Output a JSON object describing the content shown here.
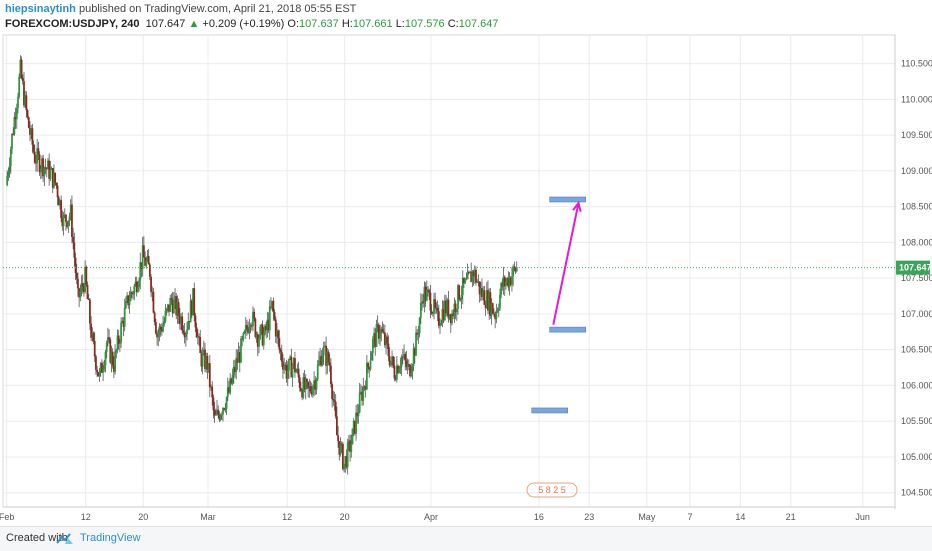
{
  "header": {
    "author": "hiepsinaytinh",
    "published_text": "published on TradingView.com, April 21, 2018 05:55 EST",
    "symbol": "FOREXCOM:USDJPY, 240",
    "last": "107.647",
    "up_arrow": "▲",
    "change": "+0.209 (+0.19%)",
    "o_label": "O:",
    "o_value": "107.637",
    "h_label": "H:",
    "h_value": "107.661",
    "l_label": "L:",
    "l_value": "107.576",
    "c_label": "C:",
    "c_value": "107.647"
  },
  "footer": {
    "created_with": "Created with",
    "brand": "TradingView"
  },
  "colors": {
    "up": "#2a9d3a",
    "down": "#8b2b1e",
    "wick": "#555555",
    "price_line": "#3aa55a",
    "price_label_bg": "#3aa55a",
    "arrow": "#e619d6",
    "level_box": "#7aa6e0",
    "grid": "#e9ecef"
  },
  "chart_data": {
    "type": "candlestick",
    "symbol": "FOREXCOM:USDJPY",
    "interval": "240",
    "y_ticks": [
      "110.500",
      "110.000",
      "109.500",
      "109.000",
      "108.500",
      "108.000",
      "107.500",
      "107.000",
      "106.500",
      "106.000",
      "105.500",
      "105.000",
      "104.500"
    ],
    "y_tick_values": [
      110.5,
      110.0,
      109.5,
      109.0,
      108.5,
      108.0,
      107.5,
      107.0,
      106.5,
      106.0,
      105.5,
      105.0,
      104.5
    ],
    "ylim": [
      104.3,
      110.9
    ],
    "x_ticks": [
      "Feb",
      "12",
      "20",
      "Mar",
      "12",
      "20",
      "Apr",
      "16",
      "23",
      "May",
      "7",
      "14",
      "21",
      "Jun"
    ],
    "x_tick_days": [
      1,
      12,
      20,
      29,
      40,
      48,
      60,
      75,
      82,
      90,
      96,
      103,
      110,
      120
    ],
    "xlim": [
      0.5,
      124.5
    ],
    "last_price": 107.647,
    "last_price_label": "107.647",
    "daily_close_path": [
      [
        1,
        108.8
      ],
      [
        2,
        109.6
      ],
      [
        3,
        110.4
      ],
      [
        4,
        109.7
      ],
      [
        5,
        109.2
      ],
      [
        6,
        109.1
      ],
      [
        7,
        109.0
      ],
      [
        8,
        108.8
      ],
      [
        9,
        108.3
      ],
      [
        10,
        108.4
      ],
      [
        11,
        107.2
      ],
      [
        12,
        107.5
      ],
      [
        13,
        106.6
      ],
      [
        14,
        106.1
      ],
      [
        15,
        106.6
      ],
      [
        16,
        106.3
      ],
      [
        17,
        106.8
      ],
      [
        18,
        107.2
      ],
      [
        19,
        107.4
      ],
      [
        20,
        107.8
      ],
      [
        21,
        107.6
      ],
      [
        22,
        106.7
      ],
      [
        23,
        106.9
      ],
      [
        24,
        107.2
      ],
      [
        25,
        107.0
      ],
      [
        26,
        106.8
      ],
      [
        27,
        107.2
      ],
      [
        28,
        106.4
      ],
      [
        29,
        106.3
      ],
      [
        30,
        105.5
      ],
      [
        31,
        105.7
      ],
      [
        32,
        105.9
      ],
      [
        33,
        106.3
      ],
      [
        34,
        106.6
      ],
      [
        35,
        107.0
      ],
      [
        36,
        106.7
      ],
      [
        37,
        106.7
      ],
      [
        38,
        107.1
      ],
      [
        39,
        106.5
      ],
      [
        40,
        106.2
      ],
      [
        41,
        106.3
      ],
      [
        42,
        106.0
      ],
      [
        43,
        105.9
      ],
      [
        44,
        106.1
      ],
      [
        45,
        106.5
      ],
      [
        46,
        106.3
      ],
      [
        47,
        105.3
      ],
      [
        48,
        104.9
      ],
      [
        49,
        105.2
      ],
      [
        50,
        105.7
      ],
      [
        51,
        106.1
      ],
      [
        52,
        106.6
      ],
      [
        53,
        106.8
      ],
      [
        54,
        106.5
      ],
      [
        55,
        106.2
      ],
      [
        56,
        106.4
      ],
      [
        57,
        106.2
      ],
      [
        58,
        106.6
      ],
      [
        59,
        107.3
      ],
      [
        60,
        107.2
      ],
      [
        61,
        106.9
      ],
      [
        62,
        107.1
      ],
      [
        63,
        107.0
      ],
      [
        64,
        107.3
      ],
      [
        65,
        107.4
      ],
      [
        66,
        107.6
      ],
      [
        67,
        107.3
      ],
      [
        68,
        107.2
      ],
      [
        69,
        107.0
      ],
      [
        70,
        107.4
      ],
      [
        71,
        107.5
      ],
      [
        72,
        107.647
      ]
    ],
    "annotations": [
      {
        "type": "level",
        "price": 108.6,
        "day_from": 76.5,
        "day_to": 81.5
      },
      {
        "type": "level",
        "price": 106.78,
        "day_from": 76.5,
        "day_to": 81.5
      },
      {
        "type": "level",
        "price": 105.65,
        "day_from": 74.0,
        "day_to": 79.0
      },
      {
        "type": "arrow",
        "from": [
          77,
          106.85
        ],
        "to": [
          80.5,
          108.55
        ]
      }
    ],
    "watermark": "5 8 2 5"
  }
}
